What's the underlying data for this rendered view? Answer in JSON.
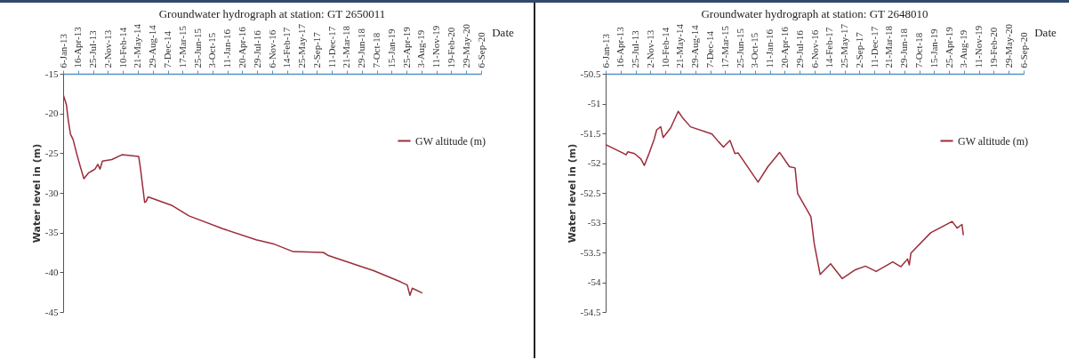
{
  "chart_data": [
    {
      "type": "line",
      "title": "Groundwater hydrograph at station: GT 2650011",
      "xlabel": "Date",
      "ylabel": "Water level in (m)",
      "legend": "right",
      "xlim": [
        "2013-01-06",
        "2020-09-06"
      ],
      "ylim": [
        -45,
        -15
      ],
      "yticks": [
        -15,
        -20,
        -25,
        -30,
        -35,
        -40,
        -45
      ],
      "xticks": [
        {
          "value": "2013-01-06",
          "label": "6-Jan-13"
        },
        {
          "value": "2013-04-16",
          "label": "16-Apr-13"
        },
        {
          "value": "2013-07-25",
          "label": "25-Jul-13"
        },
        {
          "value": "2013-11-02",
          "label": "2-Nov-13"
        },
        {
          "value": "2014-02-10",
          "label": "10-Feb-14"
        },
        {
          "value": "2014-05-21",
          "label": "21-May-14"
        },
        {
          "value": "2014-08-29",
          "label": "29-Aug-14"
        },
        {
          "value": "2014-12-07",
          "label": "7-Dec-14"
        },
        {
          "value": "2015-03-17",
          "label": "17-Mar-15"
        },
        {
          "value": "2015-06-25",
          "label": "25-Jun-15"
        },
        {
          "value": "2015-10-03",
          "label": "3-Oct-15"
        },
        {
          "value": "2016-01-11",
          "label": "11-Jan-16"
        },
        {
          "value": "2016-04-20",
          "label": "20-Apr-16"
        },
        {
          "value": "2016-07-29",
          "label": "29-Jul-16"
        },
        {
          "value": "2016-11-06",
          "label": "6-Nov-16"
        },
        {
          "value": "2017-02-14",
          "label": "14-Feb-17"
        },
        {
          "value": "2017-05-25",
          "label": "25-May-17"
        },
        {
          "value": "2017-09-02",
          "label": "2-Sep-17"
        },
        {
          "value": "2017-12-11",
          "label": "11-Dec-17"
        },
        {
          "value": "2018-03-21",
          "label": "21-Mar-18"
        },
        {
          "value": "2018-06-29",
          "label": "29-Jun-18"
        },
        {
          "value": "2018-10-07",
          "label": "7-Oct-18"
        },
        {
          "value": "2019-01-15",
          "label": "15-Jan-19"
        },
        {
          "value": "2019-04-25",
          "label": "25-Apr-19"
        },
        {
          "value": "2019-08-03",
          "label": "3-Aug-19"
        },
        {
          "value": "2019-11-11",
          "label": "11-Nov-19"
        },
        {
          "value": "2020-02-19",
          "label": "19-Feb-20"
        },
        {
          "value": "2020-05-29",
          "label": "29-May-20"
        },
        {
          "value": "2020-09-06",
          "label": "6-Sep-20"
        }
      ],
      "x": [
        "2013-01-06",
        "2013-01-28",
        "2013-02-09",
        "2013-02-24",
        "2013-03-14",
        "2013-04-06",
        "2013-04-28",
        "2013-05-25",
        "2013-06-24",
        "2013-07-21",
        "2013-08-08",
        "2013-08-26",
        "2013-09-10",
        "2013-09-26",
        "2013-11-28",
        "2014-02-04",
        "2014-05-27",
        "2014-06-07",
        "2014-06-23",
        "2014-07-06",
        "2014-07-15",
        "2014-07-29",
        "2015-01-07",
        "2015-04-29",
        "2015-12-10",
        "2016-07-22",
        "2016-11-12",
        "2017-03-27",
        "2017-10-15",
        "2017-11-18",
        "2018-05-28",
        "2018-09-17",
        "2019-03-16",
        "2019-04-30",
        "2019-05-18",
        "2019-06-03",
        "2019-08-09"
      ],
      "series": [
        {
          "name": "GW altitude (m)",
          "color": "#9b2d3a",
          "values": [
            -17.6,
            -18.9,
            -20.8,
            -22.6,
            -23.3,
            -25.0,
            -26.5,
            -28.2,
            -27.5,
            -27.2,
            -27.0,
            -26.4,
            -27.0,
            -26.0,
            -25.8,
            -25.2,
            -25.4,
            -26.8,
            -29.2,
            -31.2,
            -31.1,
            -30.5,
            -31.6,
            -32.9,
            -34.5,
            -35.9,
            -36.4,
            -37.4,
            -37.5,
            -37.9,
            -39.1,
            -39.8,
            -41.2,
            -41.6,
            -42.9,
            -42.0,
            -42.6
          ]
        }
      ]
    },
    {
      "type": "line",
      "title": "Groundwater hydrograph at station: GT 2648010",
      "xlabel": "Date",
      "ylabel": "Water level in (m)",
      "legend": "right",
      "xlim": [
        "2013-01-06",
        "2020-09-06"
      ],
      "ylim": [
        -54.5,
        -50.5
      ],
      "yticks": [
        -50.5,
        -51,
        -51.5,
        -52,
        -52.5,
        -53,
        -53.5,
        -54,
        -54.5
      ],
      "xticks": [
        {
          "value": "2013-01-06",
          "label": "6-Jan-13"
        },
        {
          "value": "2013-04-16",
          "label": "16-Apr-13"
        },
        {
          "value": "2013-07-25",
          "label": "25-Jul-13"
        },
        {
          "value": "2013-11-02",
          "label": "2-Nov-13"
        },
        {
          "value": "2014-02-10",
          "label": "10-Feb-14"
        },
        {
          "value": "2014-05-21",
          "label": "21-May-14"
        },
        {
          "value": "2014-08-29",
          "label": "29-Aug-14"
        },
        {
          "value": "2014-12-07",
          "label": "7-Dec-14"
        },
        {
          "value": "2015-03-17",
          "label": "17-Mar-15"
        },
        {
          "value": "2015-06-25",
          "label": "25-Jun-15"
        },
        {
          "value": "2015-10-03",
          "label": "3-Oct-15"
        },
        {
          "value": "2016-01-11",
          "label": "11-Jan-16"
        },
        {
          "value": "2016-04-20",
          "label": "20-Apr-16"
        },
        {
          "value": "2016-07-29",
          "label": "29-Jul-16"
        },
        {
          "value": "2016-11-06",
          "label": "6-Nov-16"
        },
        {
          "value": "2017-02-14",
          "label": "14-Feb-17"
        },
        {
          "value": "2017-05-25",
          "label": "25-May-17"
        },
        {
          "value": "2017-09-02",
          "label": "2-Sep-17"
        },
        {
          "value": "2017-12-11",
          "label": "11-Dec-17"
        },
        {
          "value": "2018-03-21",
          "label": "21-Mar-18"
        },
        {
          "value": "2018-06-29",
          "label": "29-Jun-18"
        },
        {
          "value": "2018-10-07",
          "label": "7-Oct-18"
        },
        {
          "value": "2019-01-15",
          "label": "15-Jan-19"
        },
        {
          "value": "2019-04-25",
          "label": "25-Apr-19"
        },
        {
          "value": "2019-08-03",
          "label": "3-Aug-19"
        },
        {
          "value": "2019-11-11",
          "label": "11-Nov-19"
        },
        {
          "value": "2020-02-19",
          "label": "19-Feb-20"
        },
        {
          "value": "2020-05-29",
          "label": "29-May-20"
        },
        {
          "value": "2020-09-06",
          "label": "6-Sep-20"
        }
      ],
      "x": [
        "2013-01-06",
        "2013-05-01",
        "2013-05-23",
        "2013-06-03",
        "2013-07-18",
        "2013-08-30",
        "2013-09-22",
        "2013-10-25",
        "2013-11-27",
        "2013-12-14",
        "2014-01-10",
        "2014-01-26",
        "2014-03-17",
        "2014-05-07",
        "2014-06-03",
        "2014-07-28",
        "2014-12-19",
        "2015-02-01",
        "2015-03-06",
        "2015-04-19",
        "2015-05-22",
        "2015-06-13",
        "2015-10-24",
        "2015-12-29",
        "2016-03-16",
        "2016-05-21",
        "2016-06-28",
        "2016-07-15",
        "2016-10-12",
        "2016-11-03",
        "2016-12-13",
        "2017-02-21",
        "2017-05-10",
        "2017-08-06",
        "2017-10-12",
        "2017-12-23",
        "2018-04-13",
        "2018-06-07",
        "2018-07-21",
        "2018-08-02",
        "2018-08-13",
        "2018-12-23",
        "2019-05-16",
        "2019-06-18",
        "2019-07-21",
        "2019-07-30"
      ],
      "series": [
        {
          "name": "GW altitude (m)",
          "color": "#9b2d3a",
          "values": [
            -51.69,
            -51.83,
            -51.86,
            -51.81,
            -51.84,
            -51.93,
            -52.04,
            -51.83,
            -51.6,
            -51.44,
            -51.39,
            -51.57,
            -51.41,
            -51.13,
            -51.23,
            -51.39,
            -51.51,
            -51.64,
            -51.73,
            -51.62,
            -51.84,
            -51.83,
            -52.32,
            -52.06,
            -51.82,
            -52.06,
            -52.08,
            -52.51,
            -52.9,
            -53.35,
            -53.87,
            -53.69,
            -53.94,
            -53.79,
            -53.73,
            -53.82,
            -53.66,
            -53.74,
            -53.61,
            -53.71,
            -53.51,
            -53.17,
            -52.98,
            -53.09,
            -53.03,
            -53.21
          ]
        }
      ]
    }
  ]
}
